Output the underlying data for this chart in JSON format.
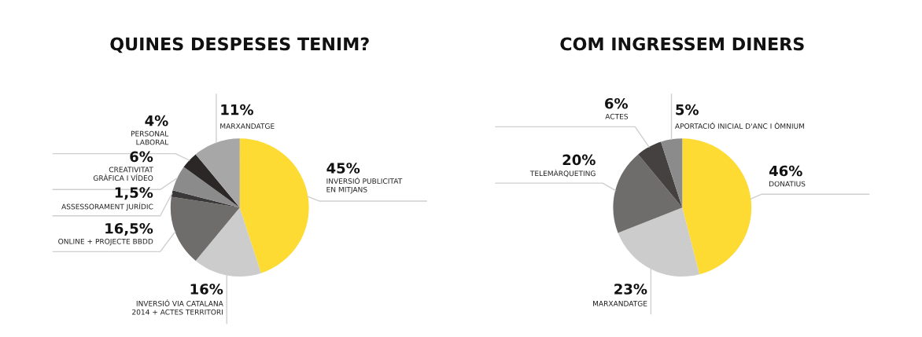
{
  "chart_data": [
    {
      "type": "pie",
      "title": "QUINES DESPESES TENIM?",
      "categories": [
        "INVERSIÓ PUBLICITAT\nEN MITJANS",
        "INVERSIÓ VIA CATALANA\n2014 + ACTES TERRITORI",
        "ONLINE + PROJECTE BBDD",
        "ASSESSORAMENT JURÍDIC",
        "CREATIVITAT\nGRÀFICA I VÍDEO",
        "PERSONAL\nLABORAL",
        "MARXANDATGE"
      ],
      "values": [
        45,
        16,
        16.5,
        1.5,
        6,
        4,
        11
      ],
      "value_labels": [
        "45%",
        "16%",
        "16,5%",
        "1,5%",
        "6%",
        "4%",
        "11%"
      ],
      "colors": [
        "#fddb33",
        "#cccccc",
        "#6e6d6c",
        "#3a3838",
        "#8c8b8b",
        "#2b2727",
        "#a7a7a7"
      ]
    },
    {
      "type": "pie",
      "title": "COM INGRESSEM DINERS",
      "categories": [
        "DONATIUS",
        "MARXANDATGE",
        "TELEMÀRQUETING",
        "ACTES",
        "APORTACIÓ INICIAL D'ANC I ÒMNIUM"
      ],
      "values": [
        46,
        23,
        20,
        6,
        5
      ],
      "value_labels": [
        "46%",
        "23%",
        "20%",
        "6%",
        "5%"
      ],
      "colors": [
        "#fddb33",
        "#cccccc",
        "#6e6d6c",
        "#454140",
        "#8c8b8b"
      ]
    }
  ]
}
